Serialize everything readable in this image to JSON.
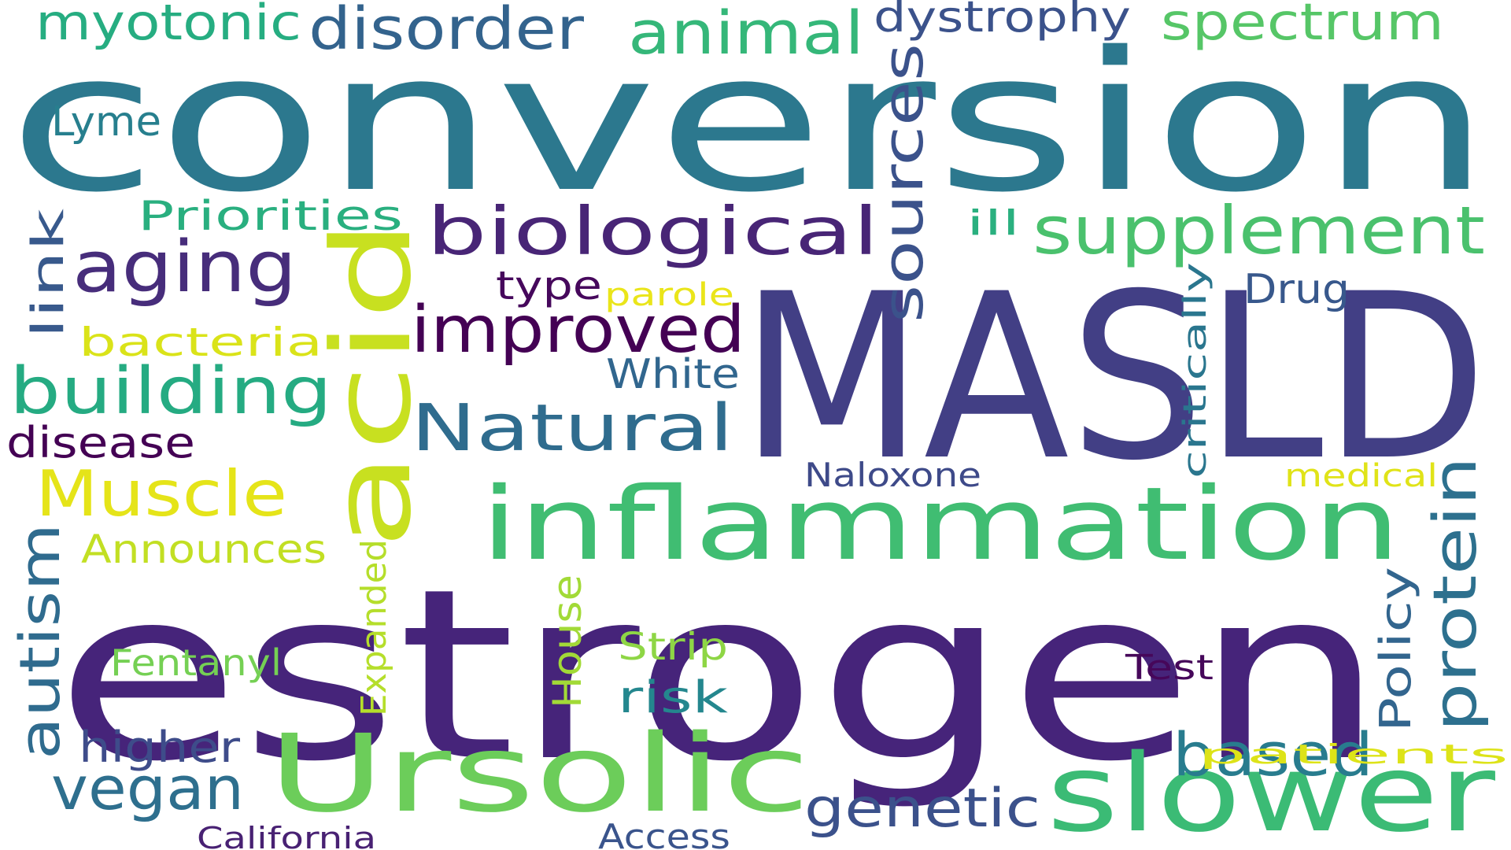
{
  "words": [
    {
      "text": "conversion",
      "color": "#2c788e"
    },
    {
      "text": "estrogen",
      "color": "#46247a"
    },
    {
      "text": "MASLD",
      "color": "#423f85"
    },
    {
      "text": "inflammation",
      "color": "#40bd72"
    },
    {
      "text": "Ursolic",
      "color": "#6ccd5a"
    },
    {
      "text": "slower",
      "color": "#3bbb75"
    },
    {
      "text": "acid",
      "color": "#c8e020"
    },
    {
      "text": "biological",
      "color": "#482576"
    },
    {
      "text": "supplement",
      "color": "#4ac16d"
    },
    {
      "text": "aging",
      "color": "#472d7b"
    },
    {
      "text": "improved",
      "color": "#440154"
    },
    {
      "text": "Natural",
      "color": "#2f6c8e"
    },
    {
      "text": "building",
      "color": "#25ab82"
    },
    {
      "text": "animal",
      "color": "#35b779"
    },
    {
      "text": "disorder",
      "color": "#33638d"
    },
    {
      "text": "spectrum",
      "color": "#56c667"
    },
    {
      "text": "myotonic",
      "color": "#26ad81"
    },
    {
      "text": "dystrophy",
      "color": "#3b528b"
    },
    {
      "text": "sources",
      "color": "#3b528b"
    },
    {
      "text": "protein",
      "color": "#2d708e"
    },
    {
      "text": "Muscle",
      "color": "#e5e419"
    },
    {
      "text": "autism",
      "color": "#2f6b8e"
    },
    {
      "text": "based",
      "color": "#287c8e"
    },
    {
      "text": "vegan",
      "color": "#2e6f8e"
    },
    {
      "text": "genetic",
      "color": "#3b518b"
    },
    {
      "text": "Priorities",
      "color": "#29af7f"
    },
    {
      "text": "link",
      "color": "#38598c"
    },
    {
      "text": "Lyme",
      "color": "#277f8e"
    },
    {
      "text": "bacteria",
      "color": "#dae319"
    },
    {
      "text": "disease",
      "color": "#440154"
    },
    {
      "text": "type",
      "color": "#46085c"
    },
    {
      "text": "parole",
      "color": "#eae51a"
    },
    {
      "text": "White",
      "color": "#31668e"
    },
    {
      "text": "Drug",
      "color": "#38588c"
    },
    {
      "text": "ill",
      "color": "#2ab07f"
    },
    {
      "text": "critically",
      "color": "#2a768e"
    },
    {
      "text": "Naloxone",
      "color": "#3e4a89"
    },
    {
      "text": "medical",
      "color": "#e0e318"
    },
    {
      "text": "Announces",
      "color": "#c2df23"
    },
    {
      "text": "Expanded",
      "color": "#b5de2b"
    },
    {
      "text": "House",
      "color": "#a2da37"
    },
    {
      "text": "Strip",
      "color": "#8ed645"
    },
    {
      "text": "risk",
      "color": "#24878e"
    },
    {
      "text": "Fentanyl",
      "color": "#75d054"
    },
    {
      "text": "Test",
      "color": "#46075a"
    },
    {
      "text": "Policy",
      "color": "#32658e"
    },
    {
      "text": "higher",
      "color": "#3e4c8a"
    },
    {
      "text": "patients",
      "color": "#dde318"
    },
    {
      "text": "California",
      "color": "#482173"
    },
    {
      "text": "Access",
      "color": "#3a548c"
    }
  ]
}
